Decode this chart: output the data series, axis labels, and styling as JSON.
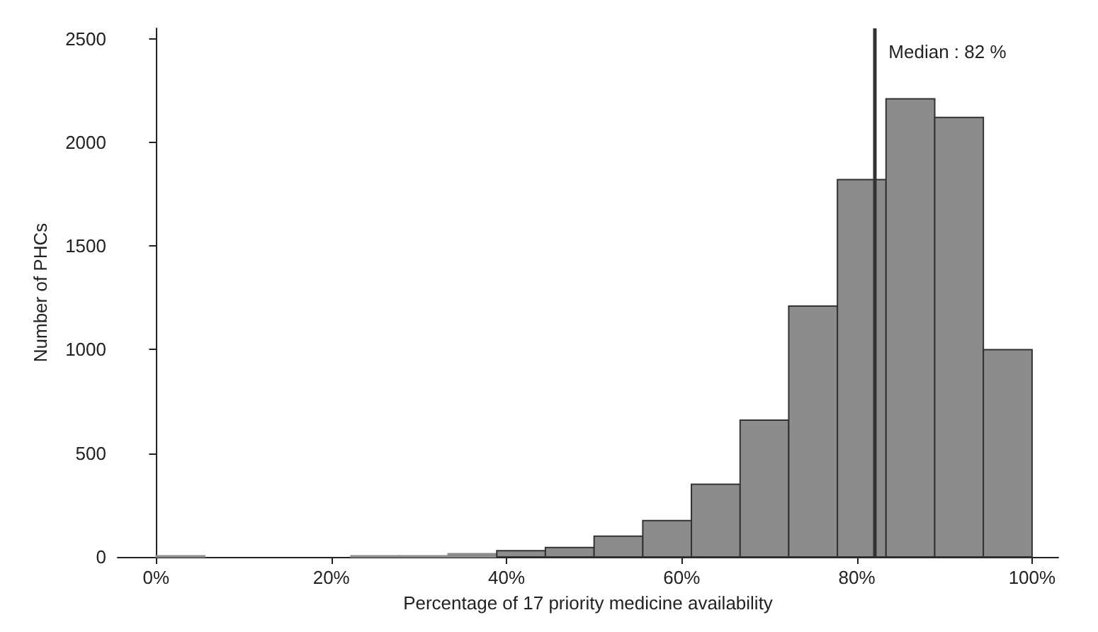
{
  "chart_data": {
    "type": "histogram",
    "xlabel": "Percentage of 17 priority medicine availability",
    "ylabel": "Number of PHCs",
    "bins": [
      0,
      5.56,
      11.11,
      16.67,
      22.22,
      27.78,
      33.33,
      38.89,
      44.44,
      50,
      55.56,
      61.11,
      66.67,
      72.22,
      77.78,
      83.33,
      88.89,
      94.44,
      100
    ],
    "values": [
      5,
      0,
      0,
      0,
      5,
      5,
      15,
      30,
      45,
      100,
      175,
      350,
      660,
      1210,
      1820,
      2210,
      2120,
      1000
    ],
    "color": "#8c8c8c",
    "xlim": [
      -4.4,
      103
    ],
    "ylim": [
      0,
      2550
    ],
    "xticks": [
      {
        "value": 0,
        "label": "0%"
      },
      {
        "value": 20,
        "label": "20%"
      },
      {
        "value": 40,
        "label": "40%"
      },
      {
        "value": 60,
        "label": "60%"
      },
      {
        "value": 80,
        "label": "80%"
      },
      {
        "value": 100,
        "label": "100%"
      }
    ],
    "yticks": [
      0,
      500,
      1000,
      1500,
      2000,
      2500
    ],
    "ref_lines": [
      {
        "axis": "x",
        "value": 82,
        "label": "Median : 82 %",
        "color": "#333333"
      }
    ]
  }
}
